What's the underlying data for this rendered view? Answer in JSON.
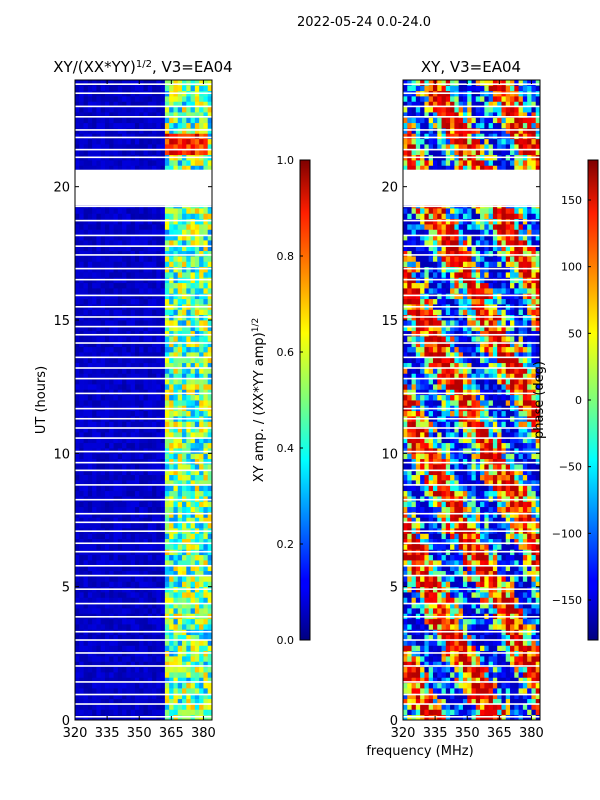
{
  "suptitle": "2022-05-24 0.0-24.0",
  "xlabel": "frequency (MHz)",
  "chart_data": [
    {
      "type": "heatmap",
      "title": "XY/(XX*YY)",
      "title_exponent": "1/2",
      "title_suffix": ", V3=EA04",
      "xlabel": "",
      "ylabel": "UT (hours)",
      "xlim": [
        320,
        384
      ],
      "ylim": [
        0,
        24
      ],
      "xticks": [
        320,
        335,
        350,
        365,
        380
      ],
      "yticks": [
        0,
        5,
        10,
        15,
        20
      ],
      "data_gaps_hours": [
        [
          19.3,
          20.6
        ]
      ],
      "colorbar": {
        "label": "XY amp. / (XX*YY amp)",
        "label_exponent": "1/2",
        "range": [
          0.0,
          1.0
        ],
        "ticks": [
          "0.0",
          "0.2",
          "0.4",
          "0.6",
          "0.8",
          "1.0"
        ],
        "colormap": "jet"
      }
    },
    {
      "type": "heatmap",
      "title": "XY, V3=EA04",
      "xlabel": "frequency (MHz)",
      "ylabel": "",
      "xlim": [
        320,
        384
      ],
      "ylim": [
        0,
        24
      ],
      "xticks": [
        320,
        335,
        350,
        365,
        380
      ],
      "yticks": [
        0,
        5,
        10,
        15,
        20
      ],
      "data_gaps_hours": [
        [
          19.3,
          20.6
        ]
      ],
      "colorbar": {
        "label": "phase (deg)",
        "range": [
          -180,
          180
        ],
        "ticks": [
          "150",
          "100",
          "50",
          "0",
          "−50",
          "−100",
          "−150"
        ],
        "colormap": "jet"
      }
    }
  ]
}
